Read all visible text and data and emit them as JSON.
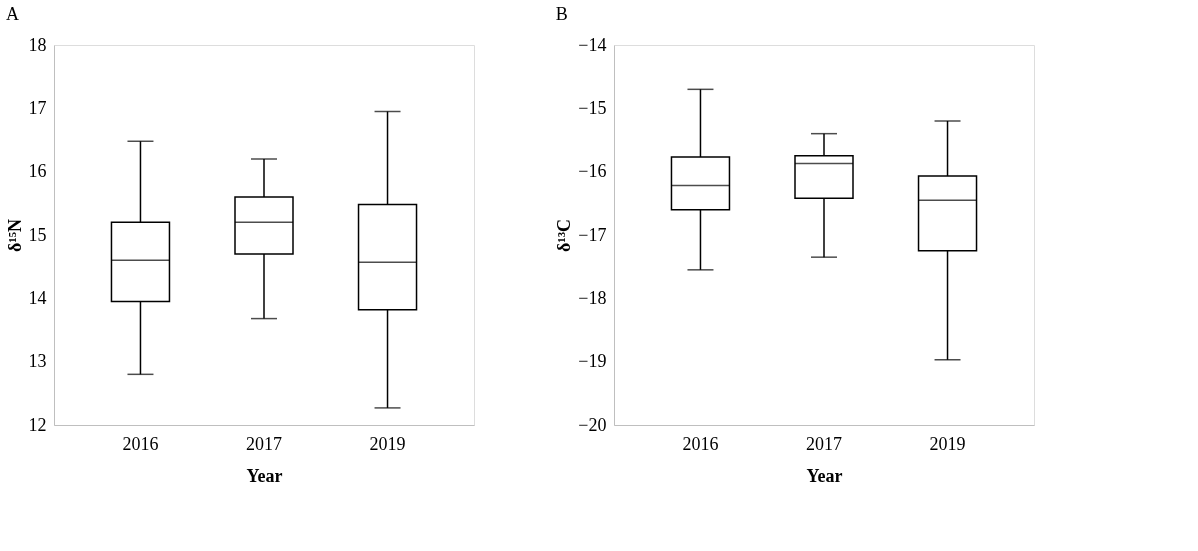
{
  "chart_data": [
    {
      "type": "box",
      "title": "A",
      "xlabel": "Year",
      "ylabel": "δ¹⁵N",
      "categories": [
        "2016",
        "2017",
        "2019"
      ],
      "color": "#000000",
      "grid": false,
      "ylim": [
        12,
        18
      ],
      "yticks": [
        12,
        13,
        14,
        15,
        16,
        17,
        18
      ],
      "boxes": [
        {
          "low": 12.8,
          "q1": 13.95,
          "median": 14.6,
          "q3": 15.2,
          "high": 16.48
        },
        {
          "low": 13.68,
          "q1": 14.7,
          "median": 15.2,
          "q3": 15.6,
          "high": 16.2
        },
        {
          "low": 12.27,
          "q1": 13.82,
          "median": 14.57,
          "q3": 15.48,
          "high": 16.95
        }
      ]
    },
    {
      "type": "box",
      "title": "B",
      "xlabel": "Year",
      "ylabel": "δ¹³C",
      "categories": [
        "2016",
        "2017",
        "2019"
      ],
      "color": "#000000",
      "grid": false,
      "ylim": [
        -20,
        -14
      ],
      "yticks": [
        -20,
        -19,
        -18,
        -17,
        -16,
        -15,
        -14
      ],
      "boxes": [
        {
          "low": -17.55,
          "q1": -16.6,
          "median": -16.22,
          "q3": -15.77,
          "high": -14.7
        },
        {
          "low": -17.35,
          "q1": -16.42,
          "median": -15.87,
          "q3": -15.75,
          "high": -15.4
        },
        {
          "low": -18.97,
          "q1": -17.25,
          "median": -16.45,
          "q3": -16.07,
          "high": -15.2
        }
      ]
    }
  ]
}
